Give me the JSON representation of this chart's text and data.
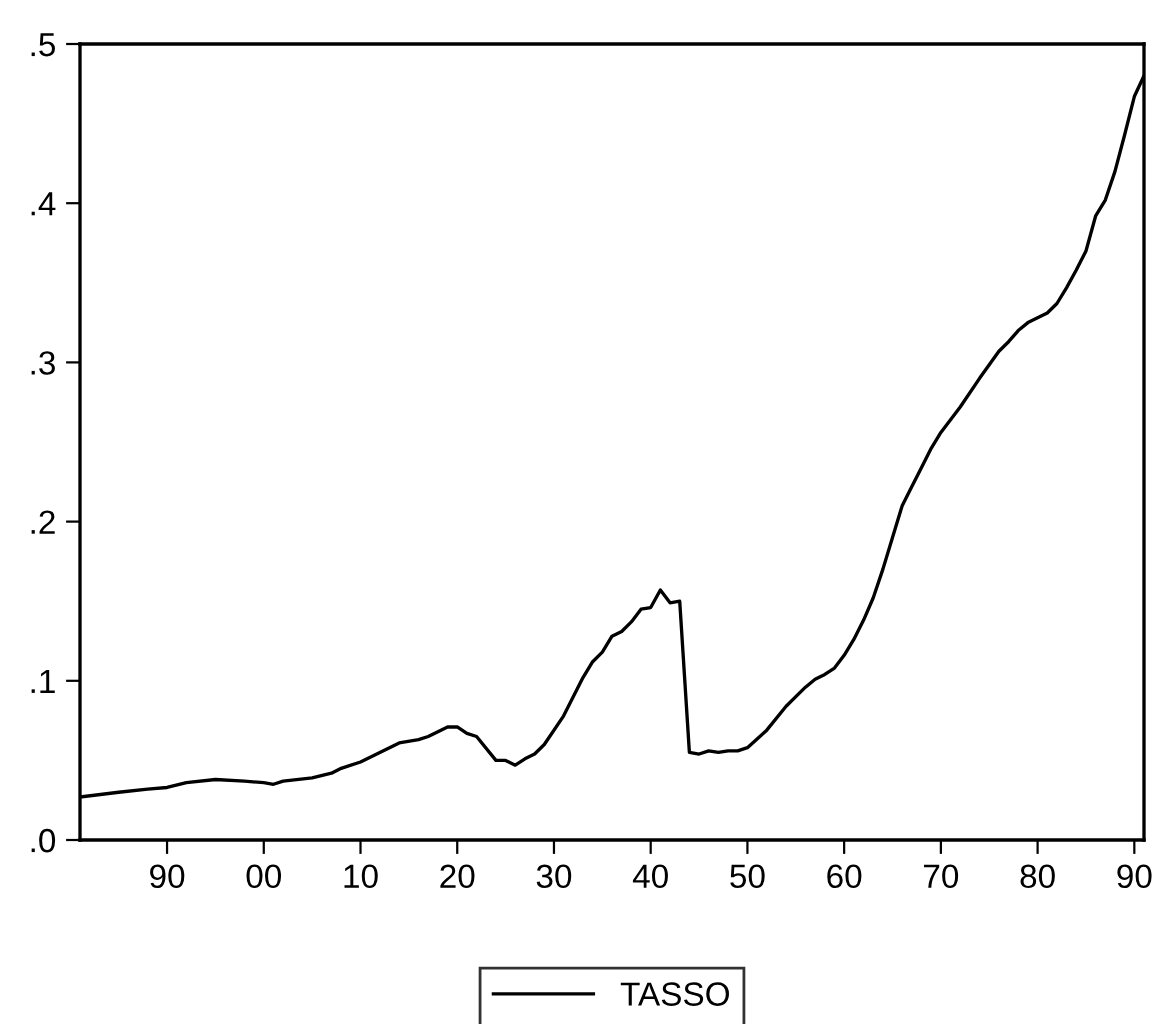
{
  "chart_data": {
    "type": "line",
    "x": [
      1881,
      1885,
      1888,
      1890,
      1892,
      1895,
      1898,
      1900,
      1901,
      1902,
      1905,
      1907,
      1908,
      1910,
      1912,
      1914,
      1916,
      1917,
      1919,
      1920,
      1921,
      1922,
      1924,
      1925,
      1926,
      1927,
      1928,
      1929,
      1931,
      1933,
      1934,
      1935,
      1936,
      1937,
      1938,
      1939,
      1940,
      1941,
      1942,
      1943,
      1944,
      1945,
      1946,
      1947,
      1948,
      1949,
      1950,
      1952,
      1954,
      1956,
      1957,
      1958,
      1959,
      1960,
      1961,
      1962,
      1963,
      1964,
      1965,
      1966,
      1967,
      1968,
      1969,
      1970,
      1972,
      1974,
      1976,
      1977,
      1978,
      1979,
      1980,
      1981,
      1982,
      1983,
      1984,
      1985,
      1986,
      1987,
      1988,
      1989,
      1990,
      1991
    ],
    "series": [
      {
        "name": "TASSO",
        "color": "#000000",
        "values": [
          0.027,
          0.03,
          0.032,
          0.033,
          0.036,
          0.038,
          0.037,
          0.036,
          0.035,
          0.037,
          0.039,
          0.042,
          0.045,
          0.049,
          0.055,
          0.061,
          0.063,
          0.065,
          0.071,
          0.071,
          0.067,
          0.065,
          0.05,
          0.05,
          0.047,
          0.051,
          0.054,
          0.06,
          0.078,
          0.102,
          0.112,
          0.118,
          0.128,
          0.131,
          0.137,
          0.145,
          0.146,
          0.157,
          0.149,
          0.15,
          0.055,
          0.054,
          0.056,
          0.055,
          0.056,
          0.056,
          0.058,
          0.069,
          0.084,
          0.096,
          0.101,
          0.104,
          0.108,
          0.116,
          0.126,
          0.138,
          0.152,
          0.17,
          0.19,
          0.21,
          0.222,
          0.234,
          0.246,
          0.256,
          0.272,
          0.29,
          0.307,
          0.313,
          0.32,
          0.325,
          0.328,
          0.331,
          0.337,
          0.347,
          0.358,
          0.37,
          0.392,
          0.402,
          0.42,
          0.443,
          0.467,
          0.48
        ]
      }
    ],
    "xlim": [
      1881,
      1991
    ],
    "xticks": [
      {
        "value": 1890,
        "label": "90"
      },
      {
        "value": 1900,
        "label": "00"
      },
      {
        "value": 1910,
        "label": "10"
      },
      {
        "value": 1920,
        "label": "20"
      },
      {
        "value": 1930,
        "label": "30"
      },
      {
        "value": 1940,
        "label": "40"
      },
      {
        "value": 1950,
        "label": "50"
      },
      {
        "value": 1960,
        "label": "60"
      },
      {
        "value": 1970,
        "label": "70"
      },
      {
        "value": 1980,
        "label": "80"
      },
      {
        "value": 1990,
        "label": "90"
      }
    ],
    "ylim": [
      0,
      0.5
    ],
    "yticks": [
      {
        "value": 0.0,
        "label": ".0"
      },
      {
        "value": 0.1,
        "label": ".1"
      },
      {
        "value": 0.2,
        "label": ".2"
      },
      {
        "value": 0.3,
        "label": ".3"
      },
      {
        "value": 0.4,
        "label": ".4"
      },
      {
        "value": 0.5,
        "label": ".5"
      }
    ],
    "grid": false,
    "legend": "bottom",
    "line_style": "solid"
  }
}
